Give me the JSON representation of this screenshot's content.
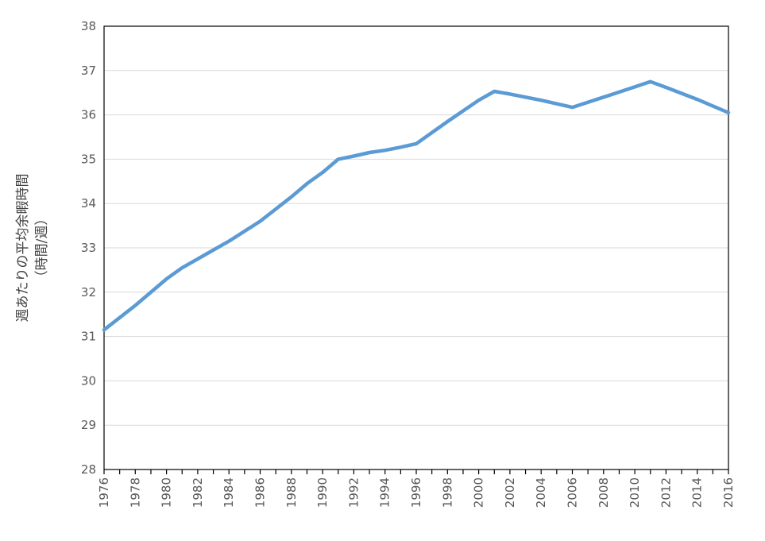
{
  "chart_data": {
    "type": "line",
    "ylabel_line1": "週あたりの平均余暇時間",
    "ylabel_line2": "（時間/週）",
    "xlim": [
      1976,
      2016
    ],
    "ylim": [
      28,
      38
    ],
    "ytick_labels": [
      "28",
      "29",
      "30",
      "31",
      "32",
      "33",
      "34",
      "35",
      "36",
      "37",
      "38"
    ],
    "xtick_labels": [
      "1976",
      "1978",
      "1980",
      "1982",
      "1984",
      "1986",
      "1988",
      "1990",
      "1992",
      "1994",
      "1996",
      "1998",
      "2000",
      "2002",
      "2004",
      "2006",
      "2008",
      "2010",
      "2012",
      "2014",
      "2016"
    ],
    "grid": true,
    "series": [
      {
        "color": "#5b9bd5",
        "x": [
          1976,
          1978,
          1980,
          1981,
          1982,
          1984,
          1986,
          1988,
          1989,
          1990,
          1991,
          1992,
          1993,
          1994,
          1995,
          1996,
          1998,
          2000,
          2001,
          2002,
          2004,
          2006,
          2008,
          2010,
          2011,
          2012,
          2014,
          2016
        ],
        "y": [
          31.15,
          31.7,
          32.3,
          32.55,
          32.75,
          33.15,
          33.6,
          34.15,
          34.45,
          34.7,
          35.0,
          35.07,
          35.15,
          35.2,
          35.27,
          35.35,
          35.85,
          36.33,
          36.53,
          36.47,
          36.33,
          36.17,
          36.4,
          36.63,
          36.75,
          36.62,
          36.35,
          36.05
        ]
      }
    ]
  }
}
